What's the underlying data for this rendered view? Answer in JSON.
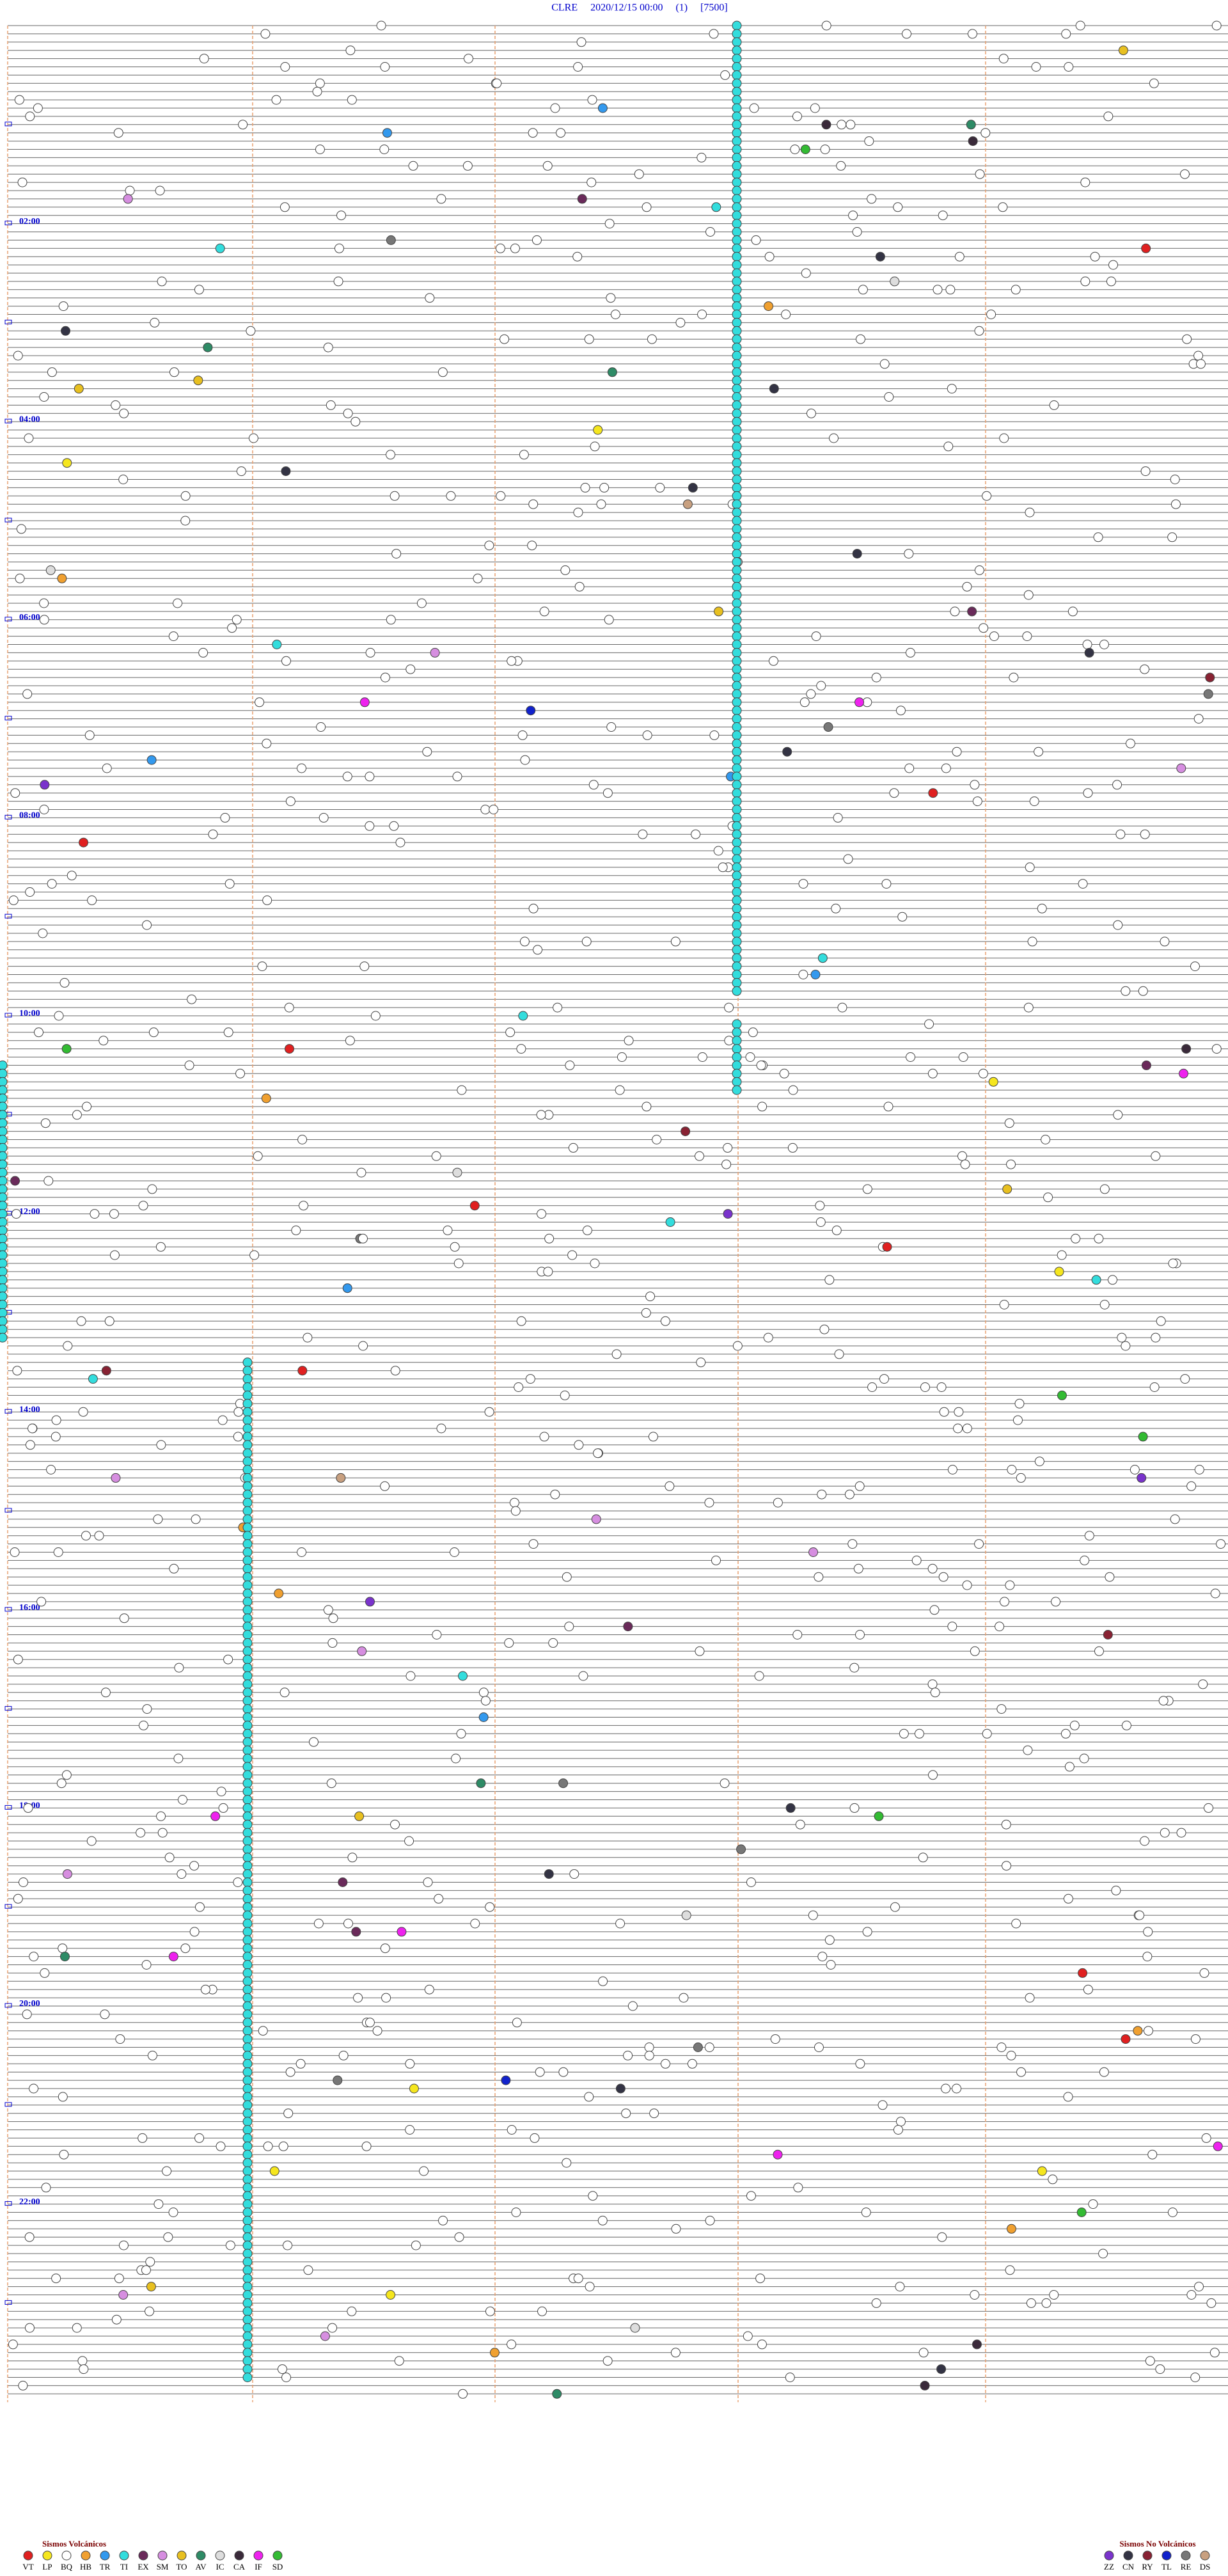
{
  "header": {
    "title": "CLRE     2020/12/15 00:00     (1)     [7500]"
  },
  "hour_labels": [
    "02:00",
    "04:00",
    "06:00",
    "08:00",
    "10:00",
    "12:00",
    "14:00",
    "16:00",
    "18:00",
    "20:00",
    "22:00"
  ],
  "legend": {
    "volcanic": {
      "title": "Sismos Volcánicos",
      "items": [
        {
          "code": "VT",
          "color": "#e02020"
        },
        {
          "code": "LP",
          "color": "#f5e61e"
        },
        {
          "code": "BQ",
          "color": "#ffffff"
        },
        {
          "code": "HB",
          "color": "#f0a030"
        },
        {
          "code": "TR",
          "color": "#3399ee"
        },
        {
          "code": "TI",
          "color": "#33dddd"
        },
        {
          "code": "EX",
          "color": "#6a2a5a"
        },
        {
          "code": "SM",
          "color": "#d68ee0"
        },
        {
          "code": "TO",
          "color": "#e8c020"
        },
        {
          "code": "AV",
          "color": "#2e8b66"
        },
        {
          "code": "IC",
          "color": "#dddddd"
        },
        {
          "code": "CA",
          "color": "#3a2a3a"
        },
        {
          "code": "IF",
          "color": "#ee22ee"
        },
        {
          "code": "SD",
          "color": "#33bb33"
        }
      ]
    },
    "non_volcanic": {
      "title": "Sismos No Volcánicos",
      "items": [
        {
          "code": "ZZ",
          "color": "#7a33cc"
        },
        {
          "code": "CN",
          "color": "#333344"
        },
        {
          "code": "RY",
          "color": "#882233"
        },
        {
          "code": "TL",
          "color": "#1122cc"
        },
        {
          "code": "RE",
          "color": "#777777"
        },
        {
          "code": "DS",
          "color": "#c8a080"
        }
      ]
    }
  }
}
